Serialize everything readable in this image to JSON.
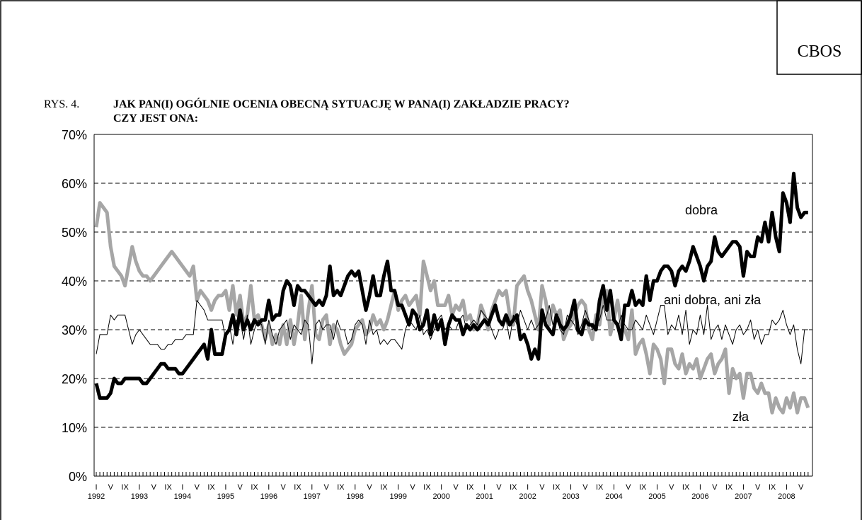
{
  "source": "CBOS",
  "chart_data": {
    "type": "line",
    "figure_label": "RYS. 4.",
    "title": [
      "JAK PAN(I) OGÓLNIE OCENIA OBECNĄ SYTUACJĘ W PANA(I) ZAKŁADZIE PRACY?",
      "CZY JEST ONA:"
    ],
    "categories": [
      "I",
      null,
      null,
      null,
      "V",
      null,
      null,
      null,
      "IX",
      null,
      null,
      null,
      "I",
      null,
      null,
      null,
      "V",
      null,
      null,
      null,
      "IX",
      null,
      null,
      null,
      "I",
      null,
      null,
      null,
      "V",
      null,
      null,
      null,
      "IX",
      null,
      null,
      null,
      "I",
      null,
      null,
      null,
      "V",
      null,
      null,
      null,
      "IX",
      null,
      null,
      null,
      "I",
      null,
      null,
      null,
      "V",
      null,
      null,
      null,
      "IX",
      null,
      null,
      null,
      "I",
      null,
      null,
      null,
      "V",
      null,
      null,
      null,
      "IX",
      null,
      null,
      null,
      "I",
      null,
      null,
      null,
      "V",
      null,
      null,
      null,
      "IX",
      null,
      null,
      null,
      "I",
      null,
      null,
      null,
      "V",
      null,
      null,
      null,
      "IX",
      null,
      null,
      null,
      "I",
      null,
      null,
      null,
      "V",
      null,
      null,
      null,
      "IX",
      null,
      null,
      null,
      "I",
      null,
      null,
      null,
      "V",
      null,
      null,
      null,
      "IX",
      null,
      null,
      null,
      "I",
      null,
      null,
      null,
      "V",
      null,
      null,
      null,
      "IX",
      null,
      null,
      null,
      "I",
      null,
      null,
      null,
      "V",
      null,
      null,
      null,
      "IX",
      null,
      null,
      null,
      "I",
      null,
      null,
      null,
      "V",
      null,
      null,
      null,
      "IX",
      null,
      null,
      null,
      "I",
      null,
      null,
      null,
      "V",
      null,
      null,
      null,
      "IX",
      null,
      null,
      null,
      "I",
      null,
      null,
      null,
      "V",
      null,
      null,
      null,
      "IX",
      null,
      null,
      null,
      "I",
      null,
      null,
      null,
      "V",
      null,
      null,
      null,
      "IX",
      null,
      null,
      null,
      "I",
      null,
      null,
      null,
      "V",
      null,
      null
    ],
    "years": [
      "1992",
      "1993",
      "1994",
      "1995",
      "1996",
      "1997",
      "1998",
      "1999",
      "2000",
      "2001",
      "2002",
      "2003",
      "2004",
      "2005",
      "2006",
      "2007",
      "2008"
    ],
    "ylim": [
      0,
      70
    ],
    "yticks": [
      {
        "value": 0,
        "label": "0%"
      },
      {
        "value": 10,
        "label": "10%"
      },
      {
        "value": 20,
        "label": "20%"
      },
      {
        "value": 30,
        "label": "30%"
      },
      {
        "value": 40,
        "label": "40%"
      },
      {
        "value": 50,
        "label": "50%"
      },
      {
        "value": 60,
        "label": "60%"
      },
      {
        "value": 70,
        "label": "70%"
      }
    ],
    "grid": true,
    "series": [
      {
        "name": "dobra",
        "color": "#000000",
        "values": [
          19,
          16,
          16,
          16,
          17,
          20,
          19,
          19,
          20,
          20,
          20,
          20,
          20,
          19,
          19,
          20,
          21,
          22,
          23,
          23,
          22,
          22,
          22,
          21,
          21,
          22,
          23,
          24,
          25,
          26,
          27,
          24,
          30,
          25,
          25,
          25,
          29,
          30,
          33,
          29,
          34,
          30,
          32,
          30,
          32,
          31,
          32,
          32,
          36,
          32,
          33,
          33,
          38,
          40,
          39,
          35,
          39,
          38,
          38,
          37,
          36,
          35,
          36,
          35,
          37,
          43,
          37,
          38,
          37,
          39,
          41,
          42,
          41,
          42,
          38,
          34,
          37,
          41,
          37,
          37,
          41,
          44,
          38,
          38,
          35,
          35,
          33,
          31,
          34,
          33,
          30,
          31,
          34,
          29,
          33,
          30,
          32,
          27,
          31,
          33,
          32,
          32,
          29,
          31,
          30,
          31,
          30,
          31,
          32,
          31,
          33,
          35,
          32,
          31,
          33,
          31,
          32,
          33,
          28,
          29,
          27,
          24,
          26,
          24,
          34,
          31,
          30,
          29,
          33,
          31,
          30,
          31,
          33,
          36,
          30,
          29,
          32,
          31,
          31,
          30,
          36,
          39,
          34,
          38,
          32,
          31,
          28,
          35,
          35,
          38,
          35,
          36,
          35,
          41,
          36,
          40,
          40,
          42,
          43,
          43,
          42,
          39,
          42,
          43,
          42,
          44,
          47,
          45,
          43,
          40,
          43,
          44,
          49,
          46,
          45,
          46,
          47,
          48,
          48,
          47,
          41,
          46,
          45,
          45,
          49,
          48,
          52,
          48,
          54,
          49,
          46,
          58,
          56,
          52,
          62,
          55,
          53,
          54,
          54
        ]
      },
      {
        "name": "ani dobra, ani zła",
        "color": "#000000",
        "values": [
          25,
          29,
          29,
          29,
          33,
          32,
          33,
          33,
          33,
          30,
          27,
          29,
          30,
          29,
          28,
          27,
          27,
          27,
          26,
          26,
          27,
          27,
          28,
          28,
          28,
          29,
          29,
          29,
          36,
          35,
          34,
          32,
          32,
          32,
          32,
          32,
          28,
          31,
          27,
          32,
          32,
          28,
          33,
          27,
          30,
          32,
          31,
          27,
          32,
          29,
          27,
          30,
          31,
          32,
          28,
          31,
          30,
          29,
          32,
          31,
          23,
          31,
          32,
          30,
          31,
          31,
          28,
          32,
          30,
          30,
          27,
          28,
          31,
          32,
          31,
          27,
          32,
          29,
          30,
          27,
          28,
          27,
          28,
          28,
          27,
          26,
          30,
          32,
          31,
          30,
          33,
          29,
          30,
          28,
          30,
          32,
          33,
          30,
          31,
          30,
          30,
          32,
          33,
          30,
          31,
          32,
          31,
          34,
          33,
          32,
          30,
          28,
          30,
          30,
          32,
          28,
          33,
          31,
          34,
          32,
          30,
          32,
          30,
          31,
          33,
          32,
          35,
          31,
          33,
          30,
          29,
          33,
          32,
          31,
          29,
          31,
          34,
          32,
          30,
          31,
          32,
          35,
          32,
          32,
          32,
          30,
          33,
          31,
          30,
          30,
          32,
          31,
          30,
          33,
          31,
          29,
          32,
          35,
          35,
          29,
          31,
          30,
          33,
          29,
          34,
          27,
          30,
          29,
          33,
          29,
          35,
          28,
          30,
          31,
          28,
          31,
          29,
          27,
          30,
          31,
          29,
          30,
          32,
          28,
          30,
          27,
          29,
          29,
          32,
          31,
          32,
          34,
          31,
          29,
          31,
          26,
          23,
          30,
          30
        ]
      },
      {
        "name": "zła",
        "color": "#a6a6a6",
        "values": [
          51,
          56,
          55,
          54,
          47,
          43,
          42,
          41,
          39,
          43,
          47,
          44,
          42,
          41,
          41,
          40,
          41,
          42,
          43,
          44,
          45,
          46,
          45,
          44,
          43,
          42,
          41,
          43,
          36,
          38,
          37,
          36,
          34,
          36,
          37,
          37,
          38,
          34,
          39,
          33,
          37,
          31,
          33,
          39,
          32,
          33,
          31,
          28,
          31,
          27,
          29,
          27,
          31,
          27,
          32,
          27,
          31,
          37,
          28,
          34,
          39,
          29,
          28,
          32,
          33,
          27,
          31,
          30,
          27,
          25,
          26,
          27,
          30,
          31,
          32,
          29,
          30,
          33,
          31,
          32,
          30,
          32,
          35,
          38,
          34,
          36,
          37,
          35,
          36,
          37,
          33,
          44,
          41,
          38,
          40,
          35,
          35,
          35,
          37,
          33,
          35,
          34,
          36,
          32,
          33,
          30,
          31,
          35,
          33,
          30,
          34,
          36,
          38,
          37,
          38,
          33,
          31,
          39,
          40,
          41,
          38,
          36,
          33,
          30,
          39,
          36,
          31,
          35,
          33,
          34,
          28,
          30,
          31,
          33,
          35,
          36,
          35,
          30,
          28,
          33,
          31,
          37,
          38,
          29,
          32,
          36,
          31,
          30,
          28,
          34,
          25,
          27,
          28,
          25,
          21,
          27,
          26,
          24,
          19,
          26,
          26,
          23,
          22,
          25,
          21,
          23,
          22,
          24,
          20,
          22,
          24,
          25,
          21,
          23,
          24,
          26,
          17,
          22,
          20,
          21,
          16,
          21,
          21,
          18,
          17,
          19,
          17,
          17,
          13,
          16,
          14,
          13,
          16,
          14,
          17,
          13,
          16,
          16,
          14
        ]
      }
    ]
  }
}
